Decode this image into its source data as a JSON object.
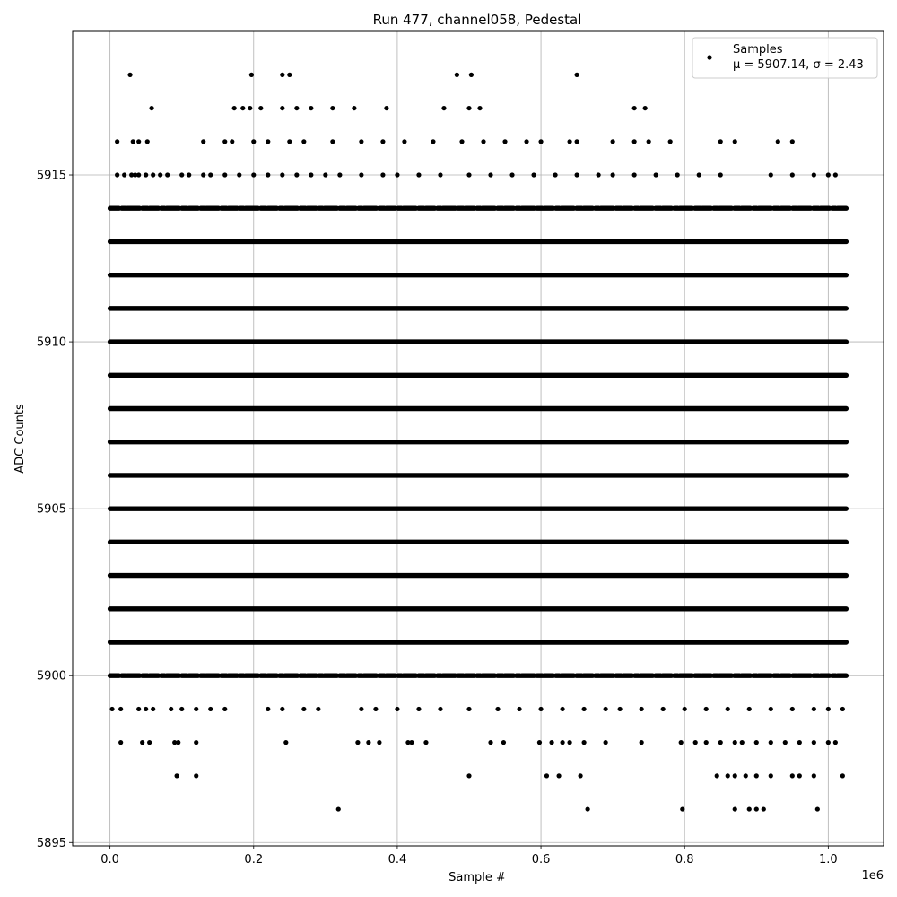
{
  "chart_data": {
    "type": "scatter",
    "title": "Run 477, channel058, Pedestal",
    "xlabel": "Sample #",
    "ylabel": "ADC Counts",
    "x_offset_text": "1e6",
    "xlim": [
      -0.052,
      1.077
    ],
    "ylim": [
      5894.9,
      5919.3
    ],
    "x_ticks": [
      0.0,
      0.2,
      0.4,
      0.6,
      0.8,
      1.0
    ],
    "x_tick_labels": [
      "0.0",
      "0.2",
      "0.4",
      "0.6",
      "0.8",
      "1.0"
    ],
    "y_ticks": [
      5895,
      5900,
      5905,
      5910,
      5915
    ],
    "y_tick_labels": [
      "5895",
      "5900",
      "5905",
      "5910",
      "5915"
    ],
    "grid": true,
    "legend_position": "top-right",
    "marker_color": "#000000",
    "series": [
      {
        "name": "Samples",
        "stats_label": "μ = 5907.14, σ = 2.43",
        "x_range": [
          0,
          1.025
        ],
        "dense_levels": [
          5901,
          5902,
          5903,
          5904,
          5905,
          5906,
          5907,
          5908,
          5909,
          5910,
          5911,
          5912,
          5913
        ],
        "semi_dense_levels": [
          5900,
          5914
        ],
        "sparse_points": [
          {
            "y": 5915,
            "x": [
              0.01,
              0.02,
              0.03,
              0.035,
              0.04,
              0.05,
              0.06,
              0.07,
              0.08,
              0.1,
              0.11,
              0.13,
              0.14,
              0.16,
              0.18,
              0.2,
              0.22,
              0.24,
              0.26,
              0.28,
              0.3,
              0.32,
              0.35,
              0.38,
              0.4,
              0.43,
              0.46,
              0.5,
              0.53,
              0.56,
              0.59,
              0.62,
              0.65,
              0.68,
              0.7,
              0.73,
              0.76,
              0.79,
              0.82,
              0.85,
              0.92,
              0.95,
              0.98,
              1.0,
              1.01
            ]
          },
          {
            "y": 5916,
            "x": [
              0.01,
              0.032,
              0.04,
              0.052,
              0.13,
              0.16,
              0.17,
              0.2,
              0.22,
              0.25,
              0.27,
              0.31,
              0.35,
              0.38,
              0.41,
              0.45,
              0.49,
              0.52,
              0.55,
              0.58,
              0.6,
              0.64,
              0.65,
              0.7,
              0.73,
              0.75,
              0.78,
              0.85,
              0.87,
              0.93,
              0.95
            ]
          },
          {
            "y": 5917,
            "x": [
              0.058,
              0.173,
              0.185,
              0.195,
              0.21,
              0.24,
              0.26,
              0.28,
              0.31,
              0.34,
              0.385,
              0.465,
              0.5,
              0.515,
              0.73,
              0.745
            ]
          },
          {
            "y": 5918,
            "x": [
              0.028,
              0.197,
              0.24,
              0.25,
              0.483,
              0.503,
              0.65
            ]
          },
          {
            "y": 5899,
            "x": [
              0.003,
              0.015,
              0.04,
              0.05,
              0.06,
              0.085,
              0.1,
              0.12,
              0.14,
              0.16,
              0.22,
              0.24,
              0.27,
              0.29,
              0.35,
              0.37,
              0.4,
              0.43,
              0.46,
              0.5,
              0.54,
              0.57,
              0.6,
              0.63,
              0.66,
              0.69,
              0.71,
              0.74,
              0.77,
              0.8,
              0.83,
              0.86,
              0.89,
              0.92,
              0.95,
              0.98,
              1.0,
              1.02
            ]
          },
          {
            "y": 5898,
            "x": [
              0.015,
              0.045,
              0.055,
              0.09,
              0.095,
              0.12,
              0.245,
              0.345,
              0.36,
              0.375,
              0.415,
              0.42,
              0.44,
              0.53,
              0.548,
              0.598,
              0.615,
              0.63,
              0.64,
              0.66,
              0.69,
              0.74,
              0.795,
              0.815,
              0.83,
              0.85,
              0.87,
              0.88,
              0.9,
              0.92,
              0.94,
              0.96,
              0.98,
              1.0,
              1.01
            ]
          },
          {
            "y": 5897,
            "x": [
              0.093,
              0.12,
              0.5,
              0.608,
              0.625,
              0.655,
              0.845,
              0.86,
              0.87,
              0.885,
              0.9,
              0.92,
              0.95,
              0.96,
              0.98,
              1.02
            ]
          },
          {
            "y": 5896,
            "x": [
              0.318,
              0.665,
              0.797,
              0.87,
              0.89,
              0.9,
              0.91,
              0.985
            ]
          }
        ]
      }
    ]
  }
}
